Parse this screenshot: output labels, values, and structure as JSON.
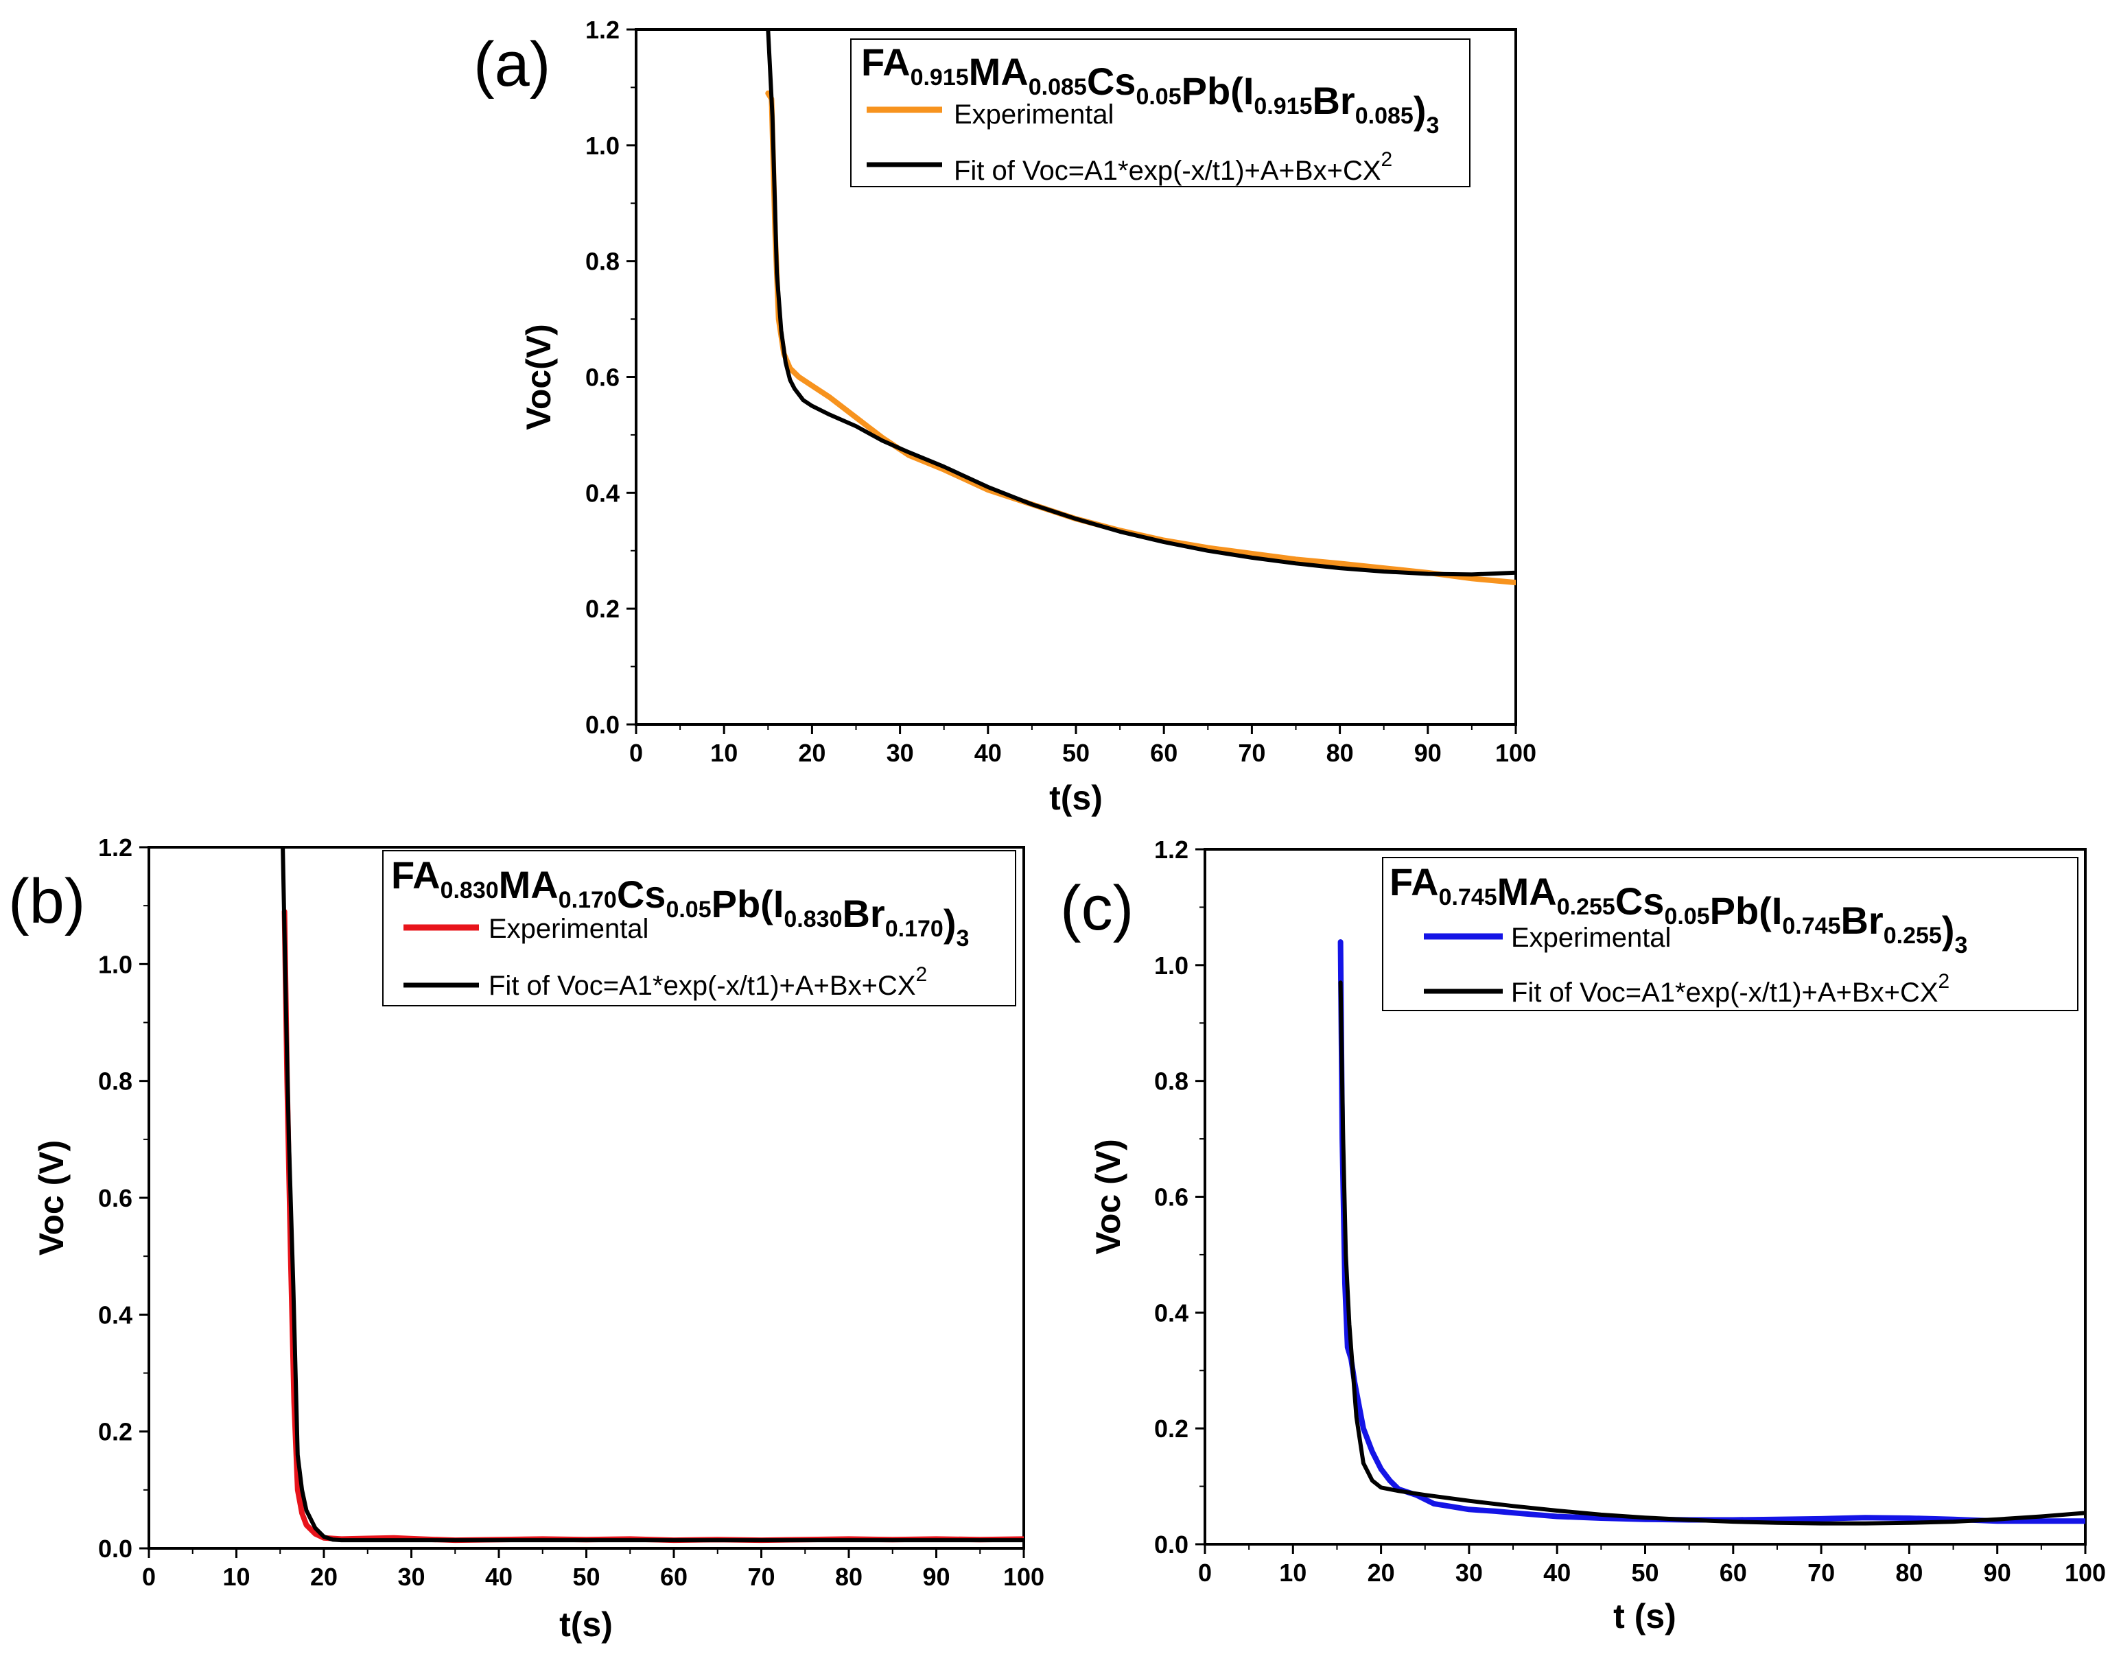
{
  "chart_data": [
    {
      "type": "line",
      "panel": "(a)",
      "xlabel": "t(s)",
      "ylabel": "Voc(V)",
      "xlim": [
        0,
        100
      ],
      "ylim": [
        0,
        1.2
      ],
      "xticks": [
        0,
        10,
        20,
        30,
        40,
        50,
        60,
        70,
        80,
        90,
        100
      ],
      "yticks": [
        "0.0",
        "0.2",
        "0.4",
        "0.6",
        "0.8",
        "1.0",
        "1.2"
      ],
      "legend": {
        "title_parts": [
          {
            "t": "FA",
            "sub": "0.915"
          },
          {
            "t": "MA",
            "sub": "0.085"
          },
          {
            "t": "Cs",
            "sub": "0.05"
          },
          {
            "t": "Pb(I",
            "sub": "0.915"
          },
          {
            "t": "Br",
            "sub": "0.085"
          },
          {
            "t": ")",
            "sub": "3"
          }
        ],
        "entries": [
          {
            "label": "Experimental",
            "color": "#f7931e"
          },
          {
            "label": "Fit of Voc=A1*exp(-x/t1)+A+Bx+CX",
            "sup": "2",
            "color": "#000000"
          }
        ]
      },
      "series": [
        {
          "name": "Experimental",
          "color": "#f7931e",
          "x": [
            15.0,
            15.4,
            15.8,
            16.2,
            16.8,
            17.5,
            18.5,
            20,
            22,
            25,
            28,
            31,
            35,
            40,
            45,
            50,
            55,
            60,
            65,
            70,
            75,
            80,
            85,
            90,
            95,
            100
          ],
          "y": [
            1.09,
            1.08,
            0.85,
            0.7,
            0.64,
            0.615,
            0.6,
            0.585,
            0.565,
            0.53,
            0.495,
            0.465,
            0.44,
            0.405,
            0.38,
            0.355,
            0.335,
            0.318,
            0.305,
            0.295,
            0.285,
            0.278,
            0.27,
            0.262,
            0.252,
            0.245
          ]
        },
        {
          "name": "Fit",
          "color": "#000000",
          "x": [
            15.0,
            15.5,
            16.0,
            16.5,
            17.0,
            17.5,
            18.0,
            19.0,
            20,
            22,
            25,
            28,
            31,
            35,
            40,
            45,
            50,
            55,
            60,
            65,
            70,
            75,
            80,
            85,
            90,
            95,
            100
          ],
          "y": [
            1.2,
            1.05,
            0.78,
            0.68,
            0.625,
            0.595,
            0.58,
            0.56,
            0.55,
            0.535,
            0.515,
            0.49,
            0.47,
            0.445,
            0.41,
            0.38,
            0.355,
            0.333,
            0.315,
            0.3,
            0.288,
            0.278,
            0.27,
            0.264,
            0.26,
            0.259,
            0.262
          ]
        }
      ]
    },
    {
      "type": "line",
      "panel": "(b)",
      "xlabel": "t(s)",
      "ylabel": "Voc (V)",
      "xlim": [
        0,
        100
      ],
      "ylim": [
        0,
        1.2
      ],
      "xticks": [
        0,
        10,
        20,
        30,
        40,
        50,
        60,
        70,
        80,
        90,
        100
      ],
      "yticks": [
        "0.0",
        "0.2",
        "0.4",
        "0.6",
        "0.8",
        "1.0",
        "1.2"
      ],
      "legend": {
        "title_parts": [
          {
            "t": "FA",
            "sub": "0.830"
          },
          {
            "t": "MA",
            "sub": "0.170"
          },
          {
            "t": "Cs",
            "sub": "0.05"
          },
          {
            "t": "Pb(I",
            "sub": "0.830"
          },
          {
            "t": "Br",
            "sub": "0.170"
          },
          {
            "t": ")",
            "sub": "3"
          }
        ],
        "entries": [
          {
            "label": "Experimental",
            "color": "#e8141b"
          },
          {
            "label": "Fit of Voc=A1*exp(-x/t1)+A+Bx+CX",
            "sup": "2",
            "color": "#000000"
          }
        ]
      },
      "series": [
        {
          "name": "Experimental",
          "color": "#e8141b",
          "x": [
            15.5,
            15.8,
            16.2,
            16.6,
            17.0,
            17.5,
            18.0,
            19.0,
            20,
            22,
            25,
            28,
            31,
            35,
            40,
            45,
            50,
            55,
            60,
            65,
            70,
            75,
            80,
            85,
            90,
            95,
            100
          ],
          "y": [
            1.09,
            0.8,
            0.5,
            0.25,
            0.1,
            0.06,
            0.04,
            0.025,
            0.018,
            0.016,
            0.017,
            0.018,
            0.016,
            0.014,
            0.015,
            0.016,
            0.015,
            0.016,
            0.014,
            0.015,
            0.014,
            0.015,
            0.016,
            0.015,
            0.016,
            0.015,
            0.016
          ]
        },
        {
          "name": "Fit",
          "color": "#000000",
          "x": [
            15.3,
            15.7,
            16.0,
            16.5,
            17.0,
            17.5,
            18.0,
            19.0,
            20,
            21,
            22,
            25,
            30,
            40,
            50,
            60,
            70,
            80,
            90,
            100
          ],
          "y": [
            1.2,
            0.9,
            0.7,
            0.45,
            0.16,
            0.1,
            0.065,
            0.035,
            0.02,
            0.015,
            0.014,
            0.014,
            0.014,
            0.014,
            0.014,
            0.014,
            0.014,
            0.014,
            0.014,
            0.014
          ]
        }
      ]
    },
    {
      "type": "line",
      "panel": "(c)",
      "xlabel": "t (s)",
      "ylabel": "Voc (V)",
      "xlim": [
        0,
        100
      ],
      "ylim": [
        0,
        1.2
      ],
      "xticks": [
        0,
        10,
        20,
        30,
        40,
        50,
        60,
        70,
        80,
        90,
        100
      ],
      "yticks": [
        "0.0",
        "0.2",
        "0.4",
        "0.6",
        "0.8",
        "1.0",
        "1.2"
      ],
      "legend": {
        "title_parts": [
          {
            "t": "FA",
            "sub": "0.745"
          },
          {
            "t": "MA",
            "sub": "0.255"
          },
          {
            "t": "Cs",
            "sub": "0.05"
          },
          {
            "t": "Pb(I",
            "sub": "0.745"
          },
          {
            "t": "Br",
            "sub": "0.255"
          },
          {
            "t": ")",
            "sub": "3"
          }
        ],
        "entries": [
          {
            "label": "Experimental",
            "color": "#1414e6"
          },
          {
            "label": "Fit of Voc=A1*exp(-x/t1)+A+Bx+CX",
            "sup": "2",
            "color": "#000000"
          }
        ]
      },
      "series": [
        {
          "name": "Experimental",
          "color": "#1414e6",
          "x": [
            15.4,
            15.6,
            15.9,
            16.2,
            16.6,
            17.0,
            17.5,
            18.0,
            19.0,
            20,
            21,
            22,
            24,
            26,
            28,
            30,
            33,
            36,
            40,
            45,
            50,
            55,
            60,
            65,
            70,
            75,
            80,
            85,
            90,
            95,
            100
          ],
          "y": [
            1.04,
            0.7,
            0.45,
            0.34,
            0.32,
            0.28,
            0.24,
            0.2,
            0.16,
            0.13,
            0.11,
            0.095,
            0.085,
            0.07,
            0.065,
            0.06,
            0.057,
            0.053,
            0.048,
            0.045,
            0.043,
            0.042,
            0.042,
            0.043,
            0.044,
            0.046,
            0.045,
            0.043,
            0.04,
            0.04,
            0.04
          ]
        },
        {
          "name": "Fit",
          "color": "#000000",
          "x": [
            15.4,
            15.7,
            16.0,
            16.4,
            16.8,
            17.2,
            17.6,
            18.0,
            19.0,
            20,
            22,
            25,
            30,
            35,
            40,
            45,
            50,
            55,
            60,
            65,
            70,
            75,
            80,
            85,
            90,
            95,
            100
          ],
          "y": [
            0.97,
            0.7,
            0.5,
            0.38,
            0.3,
            0.22,
            0.18,
            0.14,
            0.11,
            0.098,
            0.092,
            0.085,
            0.075,
            0.066,
            0.058,
            0.051,
            0.046,
            0.042,
            0.039,
            0.037,
            0.036,
            0.036,
            0.037,
            0.039,
            0.043,
            0.048,
            0.054
          ]
        }
      ]
    }
  ]
}
